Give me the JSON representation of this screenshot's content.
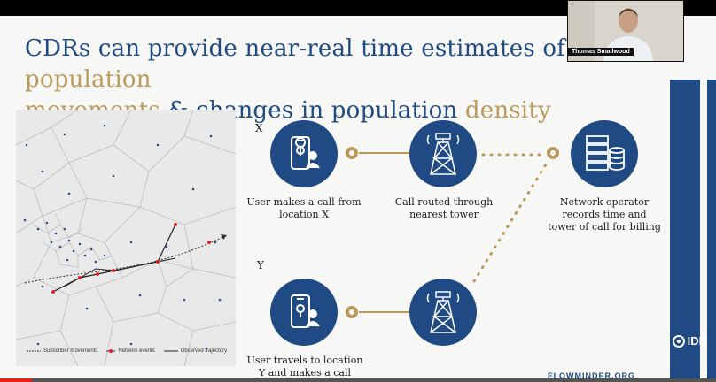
{
  "slide": {
    "title_part1": "CDRs can provide near-real time estimates of ",
    "title_gold1": "population",
    "title_gold2": "movements",
    "title_part2": " & changes in population ",
    "title_gold3": "density",
    "label_x": "X",
    "label_y": "Y",
    "step1_line1": "User makes a call from",
    "step1_line2": "location X",
    "step2_line1": "Call routed through",
    "step2_line2": "nearest tower",
    "step3_line1": "Network operator",
    "step3_line2": "records time and",
    "step3_line3": "tower of call for billing",
    "step4_line1": "User travels to location",
    "step4_line2": "Y and makes a call",
    "legend_subscriber": "Subscriber movements",
    "legend_network": "Network events",
    "legend_trajectory": "Observed trajectory",
    "footer_text": "FLOWMINDER.ORG",
    "logo_text": "IDB"
  },
  "webcam": {
    "name": "Thomas Smallwood"
  },
  "video": {
    "progress_fraction": 0.045
  },
  "colors": {
    "navy": "#1f4a84",
    "gold": "#b99a5b",
    "red": "#e62117"
  },
  "icons": [
    "phone-location-icon",
    "cell-tower-icon",
    "server-database-icon",
    "phone-location-icon",
    "cell-tower-icon"
  ]
}
